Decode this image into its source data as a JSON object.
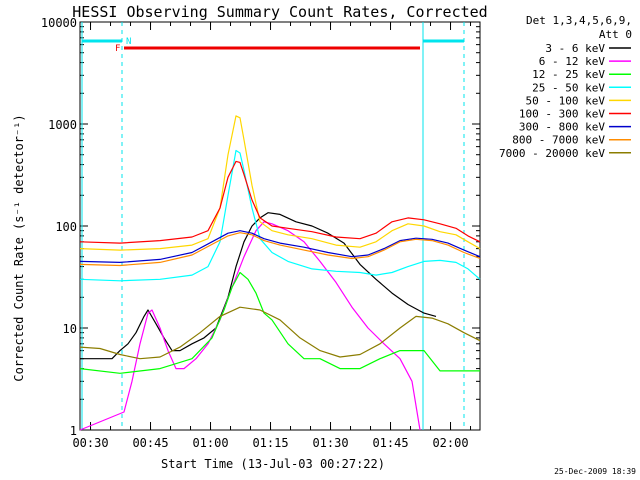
{
  "chart_data": {
    "type": "line",
    "title": "HESSI Observing Summary Count Rates, Corrected",
    "xlabel": "Start Time (13-Jul-03 00:27:22)",
    "ylabel": "Corrected Count Rate (s⁻¹ detector⁻¹)",
    "yscale": "log",
    "ylim": [
      1,
      10000
    ],
    "xlim_minutes": [
      0,
      100
    ],
    "x_unit": "minutes after 00:27:22",
    "yticks": [
      {
        "value": 1,
        "label": "1"
      },
      {
        "value": 10,
        "label": "10"
      },
      {
        "value": 100,
        "label": "100"
      },
      {
        "value": 1000,
        "label": "1000"
      },
      {
        "value": 10000,
        "label": "10000"
      }
    ],
    "xticks": [
      {
        "t": 2.63,
        "label": "00:30"
      },
      {
        "t": 17.63,
        "label": "00:45"
      },
      {
        "t": 32.63,
        "label": "01:00"
      },
      {
        "t": 47.63,
        "label": "01:15"
      },
      {
        "t": 62.63,
        "label": "01:30"
      },
      {
        "t": 77.63,
        "label": "01:45"
      },
      {
        "t": 92.63,
        "label": "02:00"
      }
    ],
    "legend_header": [
      "Det 1,3,4,5,6,9,",
      "Att 0"
    ],
    "legend_position": "right",
    "series": [
      {
        "name": "3 - 6 keV",
        "color": "#000000",
        "points": [
          [
            0,
            5
          ],
          [
            8,
            5
          ],
          [
            10,
            6
          ],
          [
            12,
            7
          ],
          [
            14,
            9
          ],
          [
            16,
            13
          ],
          [
            17,
            15
          ],
          [
            19,
            11
          ],
          [
            21,
            8
          ],
          [
            23,
            6
          ],
          [
            25,
            6
          ],
          [
            28,
            7
          ],
          [
            31,
            8
          ],
          [
            34,
            10
          ],
          [
            37,
            20
          ],
          [
            39,
            40
          ],
          [
            41,
            70
          ],
          [
            43,
            100
          ],
          [
            45,
            120
          ],
          [
            47,
            135
          ],
          [
            50,
            130
          ],
          [
            54,
            110
          ],
          [
            58,
            100
          ],
          [
            62,
            85
          ],
          [
            66,
            68
          ],
          [
            70,
            42
          ],
          [
            74,
            30
          ],
          [
            78,
            22
          ],
          [
            82,
            17
          ],
          [
            86,
            14
          ],
          [
            89,
            13
          ]
        ]
      },
      {
        "name": "6 - 12 keV",
        "color": "#ff00ff",
        "points": [
          [
            0,
            1
          ],
          [
            11,
            1.5
          ],
          [
            13,
            3
          ],
          [
            15,
            7
          ],
          [
            17,
            14
          ],
          [
            18,
            15
          ],
          [
            20,
            10
          ],
          [
            22,
            6
          ],
          [
            24,
            4
          ],
          [
            26,
            4
          ],
          [
            29,
            5
          ],
          [
            32,
            7
          ],
          [
            35,
            12
          ],
          [
            38,
            25
          ],
          [
            41,
            50
          ],
          [
            44,
            90
          ],
          [
            46,
            110
          ],
          [
            48,
            105
          ],
          [
            52,
            90
          ],
          [
            56,
            70
          ],
          [
            60,
            45
          ],
          [
            64,
            28
          ],
          [
            68,
            16
          ],
          [
            72,
            10
          ],
          [
            76,
            7
          ],
          [
            80,
            5
          ],
          [
            83,
            3
          ],
          [
            85,
            1
          ]
        ]
      },
      {
        "name": "12 - 25 keV",
        "color": "#00ff00",
        "points": [
          [
            0,
            4
          ],
          [
            10,
            3.6
          ],
          [
            20,
            4
          ],
          [
            28,
            5
          ],
          [
            33,
            8
          ],
          [
            36,
            15
          ],
          [
            38,
            25
          ],
          [
            40,
            35
          ],
          [
            42,
            30
          ],
          [
            44,
            22
          ],
          [
            46,
            14
          ],
          [
            48,
            12
          ],
          [
            52,
            7
          ],
          [
            56,
            5
          ],
          [
            60,
            5
          ],
          [
            65,
            4
          ],
          [
            70,
            4
          ],
          [
            75,
            5
          ],
          [
            80,
            6
          ],
          [
            86,
            6
          ],
          [
            90,
            3.8
          ],
          [
            100,
            3.8
          ]
        ]
      },
      {
        "name": "25 - 50 keV",
        "color": "#00ffff",
        "points": [
          [
            0,
            30
          ],
          [
            10,
            29
          ],
          [
            20,
            30
          ],
          [
            28,
            33
          ],
          [
            32,
            40
          ],
          [
            35,
            70
          ],
          [
            37,
            200
          ],
          [
            39,
            550
          ],
          [
            40,
            520
          ],
          [
            41,
            350
          ],
          [
            43,
            150
          ],
          [
            45,
            75
          ],
          [
            48,
            55
          ],
          [
            52,
            45
          ],
          [
            58,
            38
          ],
          [
            64,
            36
          ],
          [
            70,
            35
          ],
          [
            74,
            33
          ],
          [
            78,
            35
          ],
          [
            82,
            40
          ],
          [
            86,
            45
          ],
          [
            90,
            46
          ],
          [
            94,
            44
          ],
          [
            97,
            38
          ],
          [
            100,
            30
          ]
        ]
      },
      {
        "name": "50 - 100 keV",
        "color": "#ffd700",
        "points": [
          [
            0,
            60
          ],
          [
            10,
            58
          ],
          [
            20,
            60
          ],
          [
            28,
            65
          ],
          [
            32,
            75
          ],
          [
            35,
            150
          ],
          [
            37,
            500
          ],
          [
            39,
            1200
          ],
          [
            40,
            1150
          ],
          [
            41,
            700
          ],
          [
            43,
            250
          ],
          [
            45,
            110
          ],
          [
            48,
            90
          ],
          [
            52,
            82
          ],
          [
            58,
            75
          ],
          [
            64,
            65
          ],
          [
            70,
            62
          ],
          [
            74,
            70
          ],
          [
            78,
            90
          ],
          [
            82,
            105
          ],
          [
            86,
            100
          ],
          [
            90,
            88
          ],
          [
            94,
            82
          ],
          [
            97,
            70
          ],
          [
            100,
            60
          ]
        ]
      },
      {
        "name": "100 - 300 keV",
        "color": "#ff0000",
        "points": [
          [
            0,
            70
          ],
          [
            10,
            68
          ],
          [
            20,
            72
          ],
          [
            28,
            78
          ],
          [
            32,
            90
          ],
          [
            35,
            150
          ],
          [
            37,
            300
          ],
          [
            39,
            430
          ],
          [
            40,
            420
          ],
          [
            41,
            320
          ],
          [
            43,
            180
          ],
          [
            45,
            120
          ],
          [
            48,
            100
          ],
          [
            52,
            95
          ],
          [
            58,
            88
          ],
          [
            64,
            78
          ],
          [
            70,
            75
          ],
          [
            74,
            85
          ],
          [
            78,
            110
          ],
          [
            82,
            120
          ],
          [
            86,
            115
          ],
          [
            90,
            105
          ],
          [
            94,
            95
          ],
          [
            97,
            80
          ],
          [
            100,
            70
          ]
        ]
      },
      {
        "name": "300 - 800 keV",
        "color": "#0000cc",
        "points": [
          [
            0,
            45
          ],
          [
            10,
            44
          ],
          [
            20,
            47
          ],
          [
            28,
            55
          ],
          [
            33,
            70
          ],
          [
            37,
            85
          ],
          [
            40,
            90
          ],
          [
            43,
            85
          ],
          [
            46,
            75
          ],
          [
            50,
            68
          ],
          [
            56,
            62
          ],
          [
            62,
            55
          ],
          [
            68,
            50
          ],
          [
            72,
            52
          ],
          [
            76,
            60
          ],
          [
            80,
            72
          ],
          [
            84,
            76
          ],
          [
            88,
            74
          ],
          [
            92,
            68
          ],
          [
            96,
            58
          ],
          [
            100,
            50
          ]
        ]
      },
      {
        "name": "800 - 7000 keV",
        "color": "#ff8c00",
        "points": [
          [
            0,
            42
          ],
          [
            10,
            41
          ],
          [
            20,
            44
          ],
          [
            28,
            52
          ],
          [
            33,
            66
          ],
          [
            37,
            80
          ],
          [
            40,
            86
          ],
          [
            43,
            82
          ],
          [
            46,
            72
          ],
          [
            50,
            65
          ],
          [
            56,
            58
          ],
          [
            62,
            52
          ],
          [
            68,
            48
          ],
          [
            72,
            50
          ],
          [
            76,
            58
          ],
          [
            80,
            70
          ],
          [
            84,
            74
          ],
          [
            88,
            72
          ],
          [
            92,
            65
          ],
          [
            96,
            55
          ],
          [
            100,
            48
          ]
        ]
      },
      {
        "name": "7000 - 20000 keV",
        "color": "#8b7d00",
        "points": [
          [
            0,
            6.5
          ],
          [
            5,
            6.3
          ],
          [
            10,
            5.5
          ],
          [
            15,
            5
          ],
          [
            20,
            5.2
          ],
          [
            25,
            6.5
          ],
          [
            30,
            9
          ],
          [
            35,
            13
          ],
          [
            40,
            16
          ],
          [
            45,
            15
          ],
          [
            50,
            12
          ],
          [
            55,
            8
          ],
          [
            60,
            6
          ],
          [
            65,
            5.2
          ],
          [
            70,
            5.5
          ],
          [
            75,
            7
          ],
          [
            80,
            10
          ],
          [
            84,
            13
          ],
          [
            88,
            12.5
          ],
          [
            92,
            11
          ],
          [
            96,
            9
          ],
          [
            100,
            7.5
          ]
        ]
      }
    ],
    "annotations": {
      "cyan_bar_label": "N",
      "red_bar_label": "F",
      "date_stamp": "25-Dec-2009 18:39"
    }
  }
}
